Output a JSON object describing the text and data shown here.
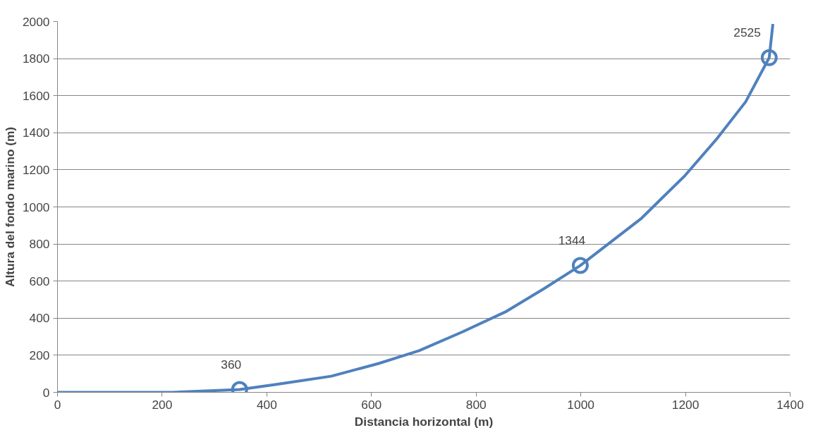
{
  "chart_data": {
    "type": "line",
    "xlabel": "Distancia horizontal (m)",
    "ylabel": "Altura del fondo marino (m)",
    "xlim": [
      0,
      1400
    ],
    "xticks": [
      0,
      200,
      400,
      600,
      800,
      1000,
      1200,
      1400
    ],
    "ylim": [
      0,
      2000
    ],
    "yticks": [
      0,
      200,
      400,
      600,
      800,
      1000,
      1200,
      1400,
      1600,
      1800,
      2000
    ],
    "grid": "y",
    "series": [
      {
        "color": "#4f81bd",
        "line_style": "solid",
        "marker": "none",
        "x": [
          0,
          220,
          348,
          418,
          523,
          614,
          691,
          773,
          858,
          930,
          999,
          1116,
          1199,
          1260,
          1315,
          1360,
          1367
        ],
        "values": [
          0,
          0,
          15,
          43,
          87,
          156,
          225,
          325,
          437,
          560,
          684,
          939,
          1169,
          1368,
          1567,
          1805,
          1987
        ]
      },
      {
        "type": "scatter",
        "color": "#4f81bd",
        "marker": "circle",
        "x": [
          348,
          999,
          1360
        ],
        "values": [
          15,
          684,
          1805
        ]
      }
    ],
    "annotations": [
      {
        "text": "360",
        "x": 348,
        "y": 15
      },
      {
        "text": "1344",
        "x": 999,
        "y": 684
      },
      {
        "text": "2525",
        "x": 1360,
        "y": 1805
      }
    ]
  }
}
